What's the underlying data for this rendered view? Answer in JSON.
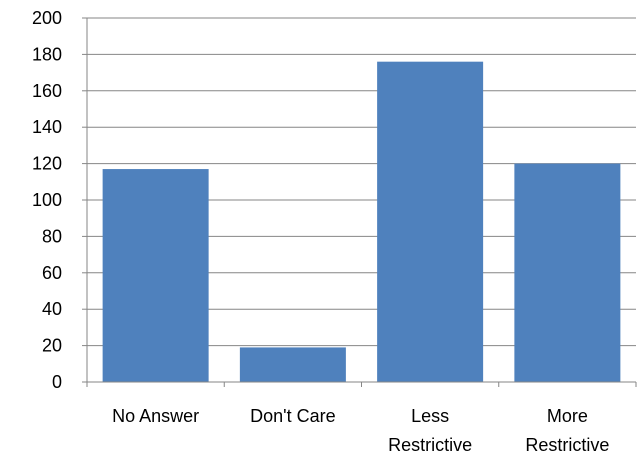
{
  "chart_data": {
    "type": "bar",
    "title": "",
    "xlabel": "",
    "ylabel": "",
    "categories": [
      [
        "No Answer"
      ],
      [
        "Don't Care"
      ],
      [
        "Less",
        "Restrictive"
      ],
      [
        "More",
        "Restrictive"
      ]
    ],
    "values": [
      117,
      19,
      176,
      120
    ],
    "ylim": [
      0,
      200
    ],
    "yticks": [
      "0",
      "20",
      "40",
      "60",
      "80",
      "100",
      "120",
      "140",
      "160",
      "180",
      "200"
    ],
    "grid": true,
    "legend": "none",
    "colors": {
      "bar": "#4F81BD",
      "grid": "#868686",
      "axis": "#868686"
    }
  }
}
